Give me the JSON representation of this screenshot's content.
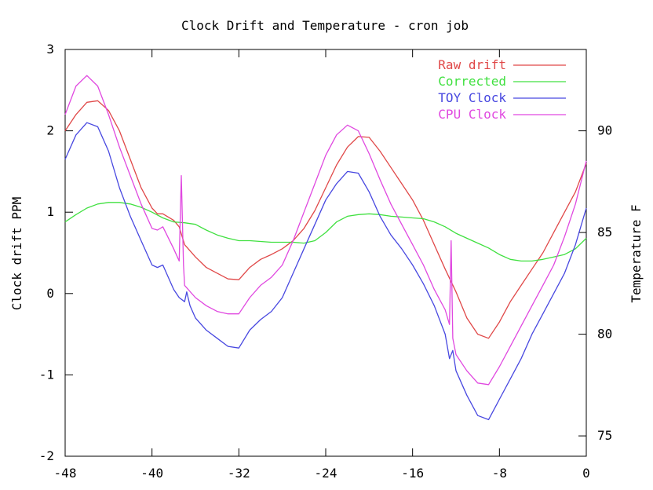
{
  "chart_data": {
    "type": "line",
    "title": "Clock Drift and Temperature - cron job",
    "xlabel": "",
    "ylabel": "Clock drift PPM",
    "y2label": "Temperature F",
    "xlim": [
      -48,
      0
    ],
    "ylim": [
      -2,
      3
    ],
    "y2lim": [
      74,
      94
    ],
    "x_ticks": [
      "-48",
      "-40",
      "-32",
      "-24",
      "-16",
      "-8",
      "0"
    ],
    "x_tick_values": [
      -48,
      -40,
      -32,
      -24,
      -16,
      -8,
      0
    ],
    "y_ticks": [
      "-2",
      "-1",
      "0",
      "1",
      "2",
      "3"
    ],
    "y_tick_values": [
      -2,
      -1,
      0,
      1,
      2,
      3
    ],
    "y2_ticks": [
      "75",
      "80",
      "85",
      "90"
    ],
    "y2_tick_values": [
      75,
      80,
      85,
      90
    ],
    "grid": false,
    "legend_position": "top-right",
    "series": [
      {
        "name": "Raw drift",
        "color": "#e04848",
        "x": [
          -48,
          -47,
          -46,
          -45,
          -44,
          -43,
          -42,
          -41,
          -40,
          -39.5,
          -39,
          -38,
          -37.5,
          -37,
          -36,
          -35,
          -34,
          -33,
          -32,
          -31,
          -30,
          -29,
          -28,
          -27,
          -26,
          -25,
          -24,
          -23,
          -22,
          -21,
          -20,
          -19,
          -18,
          -17,
          -16,
          -15,
          -14,
          -13,
          -12,
          -11,
          -10,
          -9,
          -8,
          -7,
          -6,
          -5,
          -4,
          -3,
          -2,
          -1,
          0
        ],
        "values": [
          2.0,
          2.2,
          2.35,
          2.37,
          2.25,
          2.0,
          1.65,
          1.3,
          1.05,
          0.98,
          0.98,
          0.9,
          0.82,
          0.6,
          0.45,
          0.32,
          0.25,
          0.18,
          0.17,
          0.32,
          0.42,
          0.48,
          0.55,
          0.65,
          0.8,
          1.02,
          1.3,
          1.58,
          1.8,
          1.93,
          1.92,
          1.75,
          1.55,
          1.35,
          1.15,
          0.9,
          0.6,
          0.3,
          0.02,
          -0.3,
          -0.5,
          -0.55,
          -0.35,
          -0.1,
          0.1,
          0.3,
          0.5,
          0.75,
          1.0,
          1.25,
          1.6
        ]
      },
      {
        "name": "Corrected",
        "color": "#40e040",
        "x": [
          -48,
          -47,
          -46,
          -45,
          -44,
          -43,
          -42,
          -41,
          -40,
          -39,
          -38,
          -37,
          -36,
          -35,
          -34,
          -33,
          -32,
          -31,
          -30,
          -29,
          -28,
          -27,
          -26,
          -25,
          -24,
          -23,
          -22,
          -21,
          -20,
          -19,
          -18,
          -17,
          -16,
          -15,
          -14,
          -13,
          -12,
          -11,
          -10,
          -9,
          -8,
          -7,
          -6,
          -5,
          -4,
          -3,
          -2,
          -1,
          0
        ],
        "values": [
          0.88,
          0.97,
          1.05,
          1.1,
          1.12,
          1.12,
          1.1,
          1.06,
          1.0,
          0.93,
          0.88,
          0.87,
          0.85,
          0.78,
          0.72,
          0.68,
          0.65,
          0.65,
          0.64,
          0.63,
          0.63,
          0.63,
          0.62,
          0.65,
          0.75,
          0.88,
          0.95,
          0.97,
          0.98,
          0.97,
          0.95,
          0.94,
          0.93,
          0.92,
          0.88,
          0.82,
          0.74,
          0.68,
          0.62,
          0.56,
          0.48,
          0.42,
          0.4,
          0.4,
          0.42,
          0.45,
          0.48,
          0.55,
          0.68
        ]
      },
      {
        "name": "TOY Clock",
        "color": "#4848e0",
        "x": [
          -48,
          -47,
          -46,
          -45,
          -44,
          -43,
          -42,
          -41,
          -40,
          -39.5,
          -39,
          -38,
          -37.5,
          -37,
          -36.8,
          -36.5,
          -36,
          -35,
          -34,
          -33,
          -32,
          -31,
          -30,
          -29,
          -28,
          -27,
          -26,
          -25,
          -24,
          -23,
          -22,
          -21,
          -20,
          -19,
          -18,
          -17,
          -16,
          -15,
          -14,
          -13,
          -12.6,
          -12.3,
          -12,
          -11,
          -10,
          -9,
          -8,
          -7,
          -6,
          -5,
          -4,
          -3,
          -2,
          -1,
          0
        ],
        "values": [
          1.65,
          1.95,
          2.1,
          2.05,
          1.75,
          1.3,
          0.95,
          0.65,
          0.35,
          0.32,
          0.35,
          0.05,
          -0.05,
          -0.1,
          0.02,
          -0.15,
          -0.3,
          -0.45,
          -0.55,
          -0.65,
          -0.67,
          -0.45,
          -0.32,
          -0.22,
          -0.05,
          0.25,
          0.55,
          0.85,
          1.15,
          1.35,
          1.5,
          1.48,
          1.25,
          0.95,
          0.72,
          0.55,
          0.35,
          0.12,
          -0.15,
          -0.5,
          -0.8,
          -0.7,
          -0.95,
          -1.25,
          -1.5,
          -1.55,
          -1.3,
          -1.05,
          -0.8,
          -0.5,
          -0.25,
          0.0,
          0.25,
          0.6,
          1.05
        ]
      },
      {
        "name": "CPU Clock",
        "color": "#e048e0",
        "x": [
          -48,
          -47,
          -46,
          -45,
          -44,
          -43,
          -42,
          -41,
          -40,
          -39.5,
          -39,
          -38,
          -37.5,
          -37.3,
          -37.1,
          -37.0,
          -36,
          -35,
          -34,
          -33,
          -32,
          -31,
          -30,
          -29,
          -28,
          -27,
          -26,
          -25,
          -24,
          -23,
          -22,
          -21,
          -20,
          -19,
          -18,
          -17,
          -16,
          -15,
          -14,
          -13,
          -12.6,
          -12.45,
          -12.3,
          -12,
          -11,
          -10,
          -9,
          -8,
          -7,
          -6,
          -5,
          -4,
          -3,
          -2,
          -1,
          0
        ],
        "values": [
          2.2,
          2.55,
          2.68,
          2.55,
          2.2,
          1.8,
          1.45,
          1.1,
          0.8,
          0.78,
          0.82,
          0.55,
          0.4,
          1.45,
          0.35,
          0.1,
          -0.05,
          -0.15,
          -0.22,
          -0.25,
          -0.25,
          -0.05,
          0.1,
          0.2,
          0.35,
          0.65,
          1.0,
          1.35,
          1.7,
          1.95,
          2.07,
          2.0,
          1.72,
          1.4,
          1.1,
          0.85,
          0.6,
          0.35,
          0.05,
          -0.2,
          -0.38,
          0.65,
          -0.55,
          -0.75,
          -0.95,
          -1.1,
          -1.12,
          -0.9,
          -0.65,
          -0.4,
          -0.15,
          0.1,
          0.35,
          0.7,
          1.1,
          1.63
        ]
      }
    ]
  }
}
